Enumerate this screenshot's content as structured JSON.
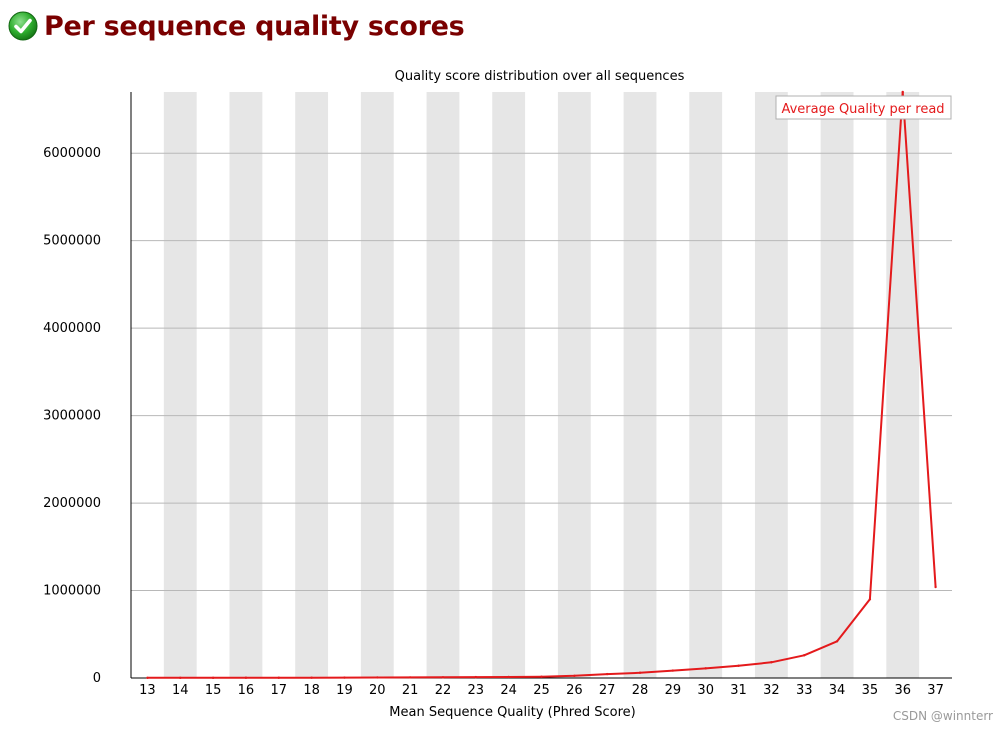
{
  "report": {
    "status": "pass",
    "status_color": "#22a322",
    "title": "Per sequence quality scores"
  },
  "watermark": "CSDN @winnterr",
  "chart_data": {
    "type": "line",
    "title": "Quality score distribution over all sequences",
    "xlabel": "Mean Sequence Quality (Phred Score)",
    "ylabel": "",
    "x": [
      13,
      14,
      15,
      16,
      17,
      18,
      19,
      20,
      21,
      22,
      23,
      24,
      25,
      26,
      27,
      28,
      29,
      30,
      31,
      32,
      33,
      34,
      35,
      36,
      37
    ],
    "xlim": [
      13,
      37
    ],
    "ylim": [
      0,
      6700000
    ],
    "yticks": [
      0,
      1000000,
      2000000,
      3000000,
      4000000,
      5000000,
      6000000
    ],
    "yticklabels": [
      "0",
      "1000000",
      "2000000",
      "3000000",
      "4000000",
      "5000000",
      "6000000"
    ],
    "grid": true,
    "alternating_column_shading": true,
    "legend_position": "top-right",
    "series": [
      {
        "name": "Average Quality per read",
        "color": "#e41a1c",
        "values": [
          2000,
          2000,
          2000,
          3000,
          3000,
          4000,
          5000,
          6000,
          7000,
          8000,
          10000,
          12000,
          15000,
          25000,
          45000,
          60000,
          85000,
          110000,
          140000,
          180000,
          260000,
          420000,
          900000,
          6700000,
          1040000
        ]
      }
    ]
  }
}
